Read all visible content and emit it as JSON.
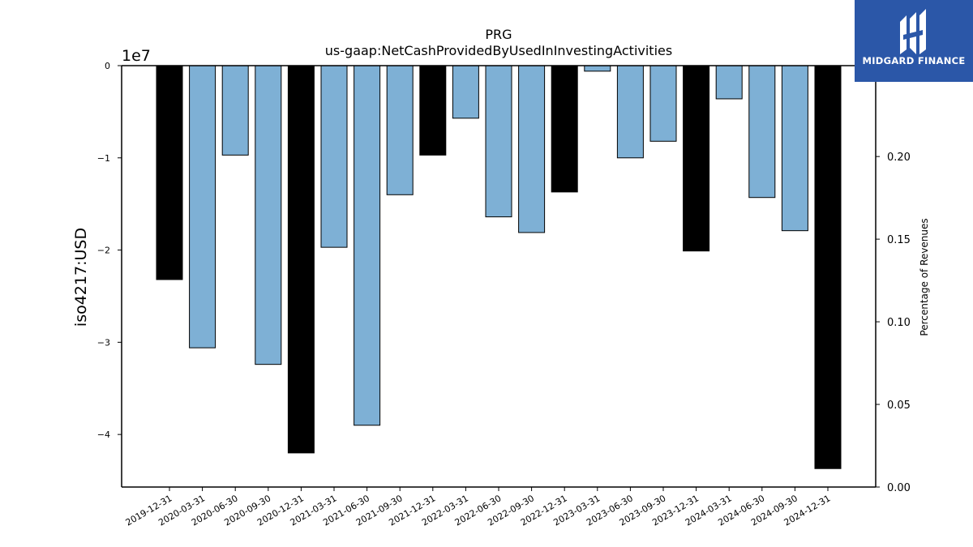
{
  "chart_data": {
    "type": "bar",
    "title": "PRG",
    "subtitle": "us-gaap:NetCashProvidedByUsedInInvestingActivities",
    "ylabel": "iso4217:USD",
    "y_offset_label": "1e7",
    "y2label": "Percentage of Revenues",
    "categories": [
      "2019-12-31",
      "2020-03-31",
      "2020-06-30",
      "2020-09-30",
      "2020-12-31",
      "2021-03-31",
      "2021-06-30",
      "2021-09-30",
      "2021-12-31",
      "2022-03-31",
      "2022-06-30",
      "2022-09-30",
      "2022-12-31",
      "2023-03-31",
      "2023-06-30",
      "2023-09-30",
      "2023-12-31",
      "2024-03-31",
      "2024-06-30",
      "2024-09-30",
      "2024-12-31"
    ],
    "values": [
      -23200000,
      -30600000,
      -9700000,
      -32400000,
      -42000000,
      -19700000,
      -39000000,
      -14000000,
      -9700000,
      -5700000,
      -16400000,
      -18100000,
      -13700000,
      -600000,
      -10000000,
      -8200000,
      -20100000,
      -3600000,
      -14300000,
      -17900000,
      -43700000
    ],
    "bar_colors": [
      "#000000",
      "#7eb0d5",
      "#7eb0d5",
      "#7eb0d5",
      "#000000",
      "#7eb0d5",
      "#7eb0d5",
      "#7eb0d5",
      "#000000",
      "#7eb0d5",
      "#7eb0d5",
      "#7eb0d5",
      "#000000",
      "#7eb0d5",
      "#7eb0d5",
      "#7eb0d5",
      "#000000",
      "#7eb0d5",
      "#7eb0d5",
      "#7eb0d5",
      "#000000"
    ],
    "ylim": [
      -45700000,
      0
    ],
    "yticks": [
      0,
      -10000000,
      -20000000,
      -30000000,
      -40000000
    ],
    "ytick_labels": [
      "0",
      "−1",
      "−2",
      "−3",
      "−4"
    ],
    "y2lim": [
      0.0,
      0.255
    ],
    "y2ticks": [
      0.0,
      0.05,
      0.1,
      0.15,
      0.2
    ],
    "y2tick_labels": [
      "0.00",
      "0.05",
      "0.10",
      "0.15",
      "0.20"
    ],
    "grid": false,
    "legend": "none"
  },
  "logo": {
    "text": "MIDGARD FINANCE",
    "icon": "midgard-logo-icon",
    "color": "#2b57a8"
  }
}
